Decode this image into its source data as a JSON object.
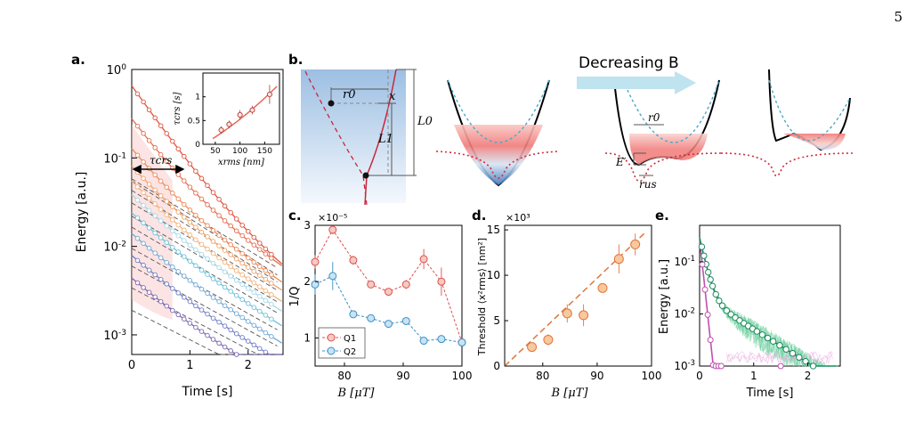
{
  "page_number": "5",
  "panel_labels": [
    "a.",
    "b.",
    "c.",
    "d.",
    "e."
  ],
  "decreasing_label": "Decreasing B",
  "colors": {
    "series": [
      "#e0533f",
      "#e66d4f",
      "#ec8a5a",
      "#f0a469",
      "#f2b57c",
      "#a8d8e5",
      "#6dc3dc",
      "#72a9d6",
      "#6f7fc4",
      "#7c66b3"
    ],
    "q1": "#d9534f",
    "q2": "#3b8fc4",
    "orange": "#e0763a",
    "green": "#2bb37a",
    "magenta": "#c04fb0",
    "well_fill": "#f07a78"
  },
  "chart_data": [
    {
      "id": "a",
      "type": "line",
      "xlabel": "Time [s]",
      "ylabel": "Energy [a.u.]",
      "log_y": true,
      "xlim": [
        0,
        2.6
      ],
      "ylim": [
        0.0006,
        1
      ],
      "x_ticks": [
        "0",
        "1",
        "2"
      ],
      "y_ticks": [
        "10^0",
        "10^-1",
        "10^-2",
        "10^-3"
      ],
      "annotation": "τcrs",
      "series": [
        {
          "a0": 0.6,
          "t0": 0.45,
          "a1": 0.055,
          "t1": 1.02
        },
        {
          "a0": 0.22,
          "t0": 0.45,
          "a1": 0.058,
          "t1": 1.08
        },
        {
          "a0": 0.085,
          "t0": 0.45,
          "a1": 0.043,
          "t1": 1.05
        },
        {
          "a0": 0.05,
          "t0": 0.48,
          "a1": 0.031,
          "t1": 1.1
        },
        {
          "a0": 0.033,
          "t0": 0.5,
          "a1": 0.022,
          "t1": 1.12
        },
        {
          "a0": 0.022,
          "t0": 0.55,
          "a1": 0.0165,
          "t1": 1.12
        },
        {
          "a0": 0.0145,
          "t0": 0.6,
          "a1": 0.0095,
          "t1": 1.18
        },
        {
          "a0": 0.008,
          "t0": 0.6,
          "a1": 0.006,
          "t1": 1.2
        },
        {
          "a0": 0.0045,
          "t0": 0.6,
          "a1": 0.0034,
          "t1": 1.25
        },
        {
          "a0": 0.0025,
          "t0": 0.6,
          "a1": 0.0019,
          "t1": 1.3
        }
      ],
      "inset": {
        "xlabel": "xrms [nm]",
        "ylabel": "τcrs [s]",
        "xlim": [
          25,
          180
        ],
        "ylim": [
          0,
          1.5
        ],
        "x_ticks": [
          "50",
          "100",
          "150"
        ],
        "y_ticks": [
          "0",
          "0.5",
          "1"
        ],
        "x": [
          62,
          78,
          100,
          125,
          160
        ],
        "y": [
          0.3,
          0.42,
          0.62,
          0.72,
          1.05
        ],
        "err": [
          0.08,
          0.08,
          0.1,
          0.09,
          0.2
        ]
      }
    },
    {
      "id": "c",
      "type": "line",
      "xlabel": "B [μT]",
      "ylabel": "1/Q",
      "multiplier": "×10^-5",
      "xlim": [
        75,
        100
      ],
      "ylim": [
        0.5,
        3
      ],
      "x_ticks": [
        "80",
        "90",
        "100"
      ],
      "y_ticks": [
        "1",
        "2",
        "3"
      ],
      "legend": [
        "Q1",
        "Q2"
      ],
      "series": [
        {
          "name": "Q1",
          "x": [
            75,
            78,
            81.5,
            84.5,
            87.5,
            90.5,
            93.5,
            96.5,
            100
          ],
          "values": [
            2.35,
            2.92,
            2.38,
            1.95,
            1.82,
            1.95,
            2.4,
            2.0,
            0.92
          ],
          "err": [
            0.12,
            0.08,
            0.08,
            0.06,
            0.05,
            0.08,
            0.18,
            0.25,
            0.06
          ]
        },
        {
          "name": "Q2",
          "x": [
            75,
            78,
            81.5,
            84.5,
            87.5,
            90.5,
            93.5,
            96.5,
            100
          ],
          "values": [
            1.95,
            2.1,
            1.42,
            1.35,
            1.25,
            1.3,
            0.95,
            0.98,
            0.92
          ],
          "err": [
            0.18,
            0.25,
            0.05,
            0.05,
            0.04,
            0.05,
            0.04,
            0.04,
            0.06
          ]
        }
      ]
    },
    {
      "id": "d",
      "type": "scatter",
      "xlabel": "B [μT]",
      "ylabel": "Threshold ⟨x²rms⟩ [nm²]",
      "multiplier": "×10^3",
      "xlim": [
        73,
        100
      ],
      "ylim": [
        0,
        15.5
      ],
      "x_ticks": [
        "80",
        "90",
        "100"
      ],
      "y_ticks": [
        "0",
        "5",
        "10",
        "15"
      ],
      "x": [
        78,
        81,
        84.5,
        87.5,
        91,
        94,
        97
      ],
      "values": [
        2.1,
        2.9,
        5.8,
        5.6,
        8.6,
        11.8,
        13.4
      ],
      "err": [
        0.4,
        0.6,
        1.0,
        1.2,
        0.5,
        1.6,
        1.2
      ],
      "fit": {
        "x": [
          73,
          99
        ],
        "y": [
          0.0,
          14.8
        ]
      }
    },
    {
      "id": "e",
      "type": "line",
      "xlabel": "Time [s]",
      "ylabel": "Energy [a.u.]",
      "log_y": true,
      "xlim": [
        0,
        2.6
      ],
      "ylim": [
        0.001,
        0.5
      ],
      "x_ticks": [
        "0",
        "1",
        "2"
      ],
      "y_ticks": [
        "10^-1",
        "10^-2",
        "10^-3"
      ],
      "series": [
        {
          "name": "green",
          "a0": 0.27,
          "t0": 0.09,
          "a1": 0.022,
          "t1": 0.68,
          "x": [
            0.04,
            0.08,
            0.12,
            0.16,
            0.2,
            0.24,
            0.3,
            0.36,
            0.42,
            0.5,
            0.58,
            0.66,
            0.74,
            0.82,
            0.9,
            0.98,
            1.06,
            1.16,
            1.26,
            1.36,
            1.48,
            1.6,
            1.72,
            1.84,
            1.96,
            2.1
          ]
        },
        {
          "name": "magenta",
          "a0": 0.27,
          "t0": 0.045,
          "x": [
            0.05,
            0.1,
            0.15,
            0.2,
            0.25,
            0.3,
            0.35,
            0.4,
            1.5
          ]
        }
      ]
    }
  ],
  "diagram_b": {
    "labels": [
      "r0",
      "x",
      "L0",
      "L1"
    ]
  },
  "wells": {
    "labels": [
      "r0",
      "E′",
      "rus"
    ]
  }
}
